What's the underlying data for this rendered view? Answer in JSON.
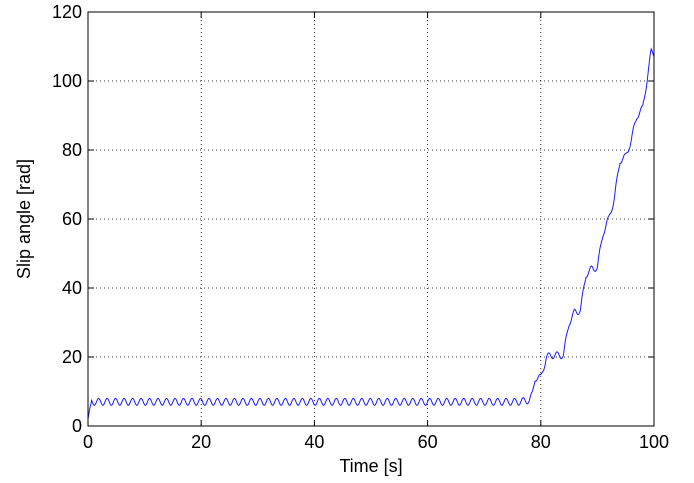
{
  "chart_data": {
    "type": "line",
    "title": "",
    "xlabel": "Time [s]",
    "ylabel": "Slip angle [rad]",
    "xlim": [
      0,
      100
    ],
    "ylim": [
      0,
      120
    ],
    "xticks": [
      0,
      20,
      40,
      60,
      80,
      100
    ],
    "yticks": [
      0,
      20,
      40,
      60,
      80,
      100,
      120
    ],
    "x_tick_labels": [
      "0",
      "20",
      "40",
      "60",
      "80",
      "100"
    ],
    "y_tick_labels": [
      "0",
      "20",
      "40",
      "60",
      "80",
      "100",
      "120"
    ],
    "grid": true,
    "legend": "none",
    "series": [
      {
        "color": "#1a1aff",
        "x": [
          0,
          0.3,
          0.6,
          1,
          2,
          5,
          10,
          20,
          30,
          40,
          50,
          60,
          70,
          76,
          78,
          78.5,
          79,
          80,
          81,
          82,
          83,
          84,
          85,
          86,
          87,
          88,
          89,
          90,
          91,
          92,
          93,
          94,
          95,
          96,
          97,
          98,
          99,
          99.5,
          100
        ],
        "y": [
          2,
          5,
          7,
          7,
          7,
          7,
          7,
          7,
          7,
          7,
          7,
          7,
          7,
          7,
          7.5,
          9,
          14,
          14,
          20,
          20.5,
          20.5,
          20.5,
          30,
          33,
          33.5,
          44,
          45.5,
          46,
          56,
          60,
          66,
          77,
          78,
          83,
          90,
          92,
          103,
          108.5,
          108
        ]
      }
    ],
    "oscillation": {
      "amplitude": 1,
      "period_s": 1.5
    }
  }
}
